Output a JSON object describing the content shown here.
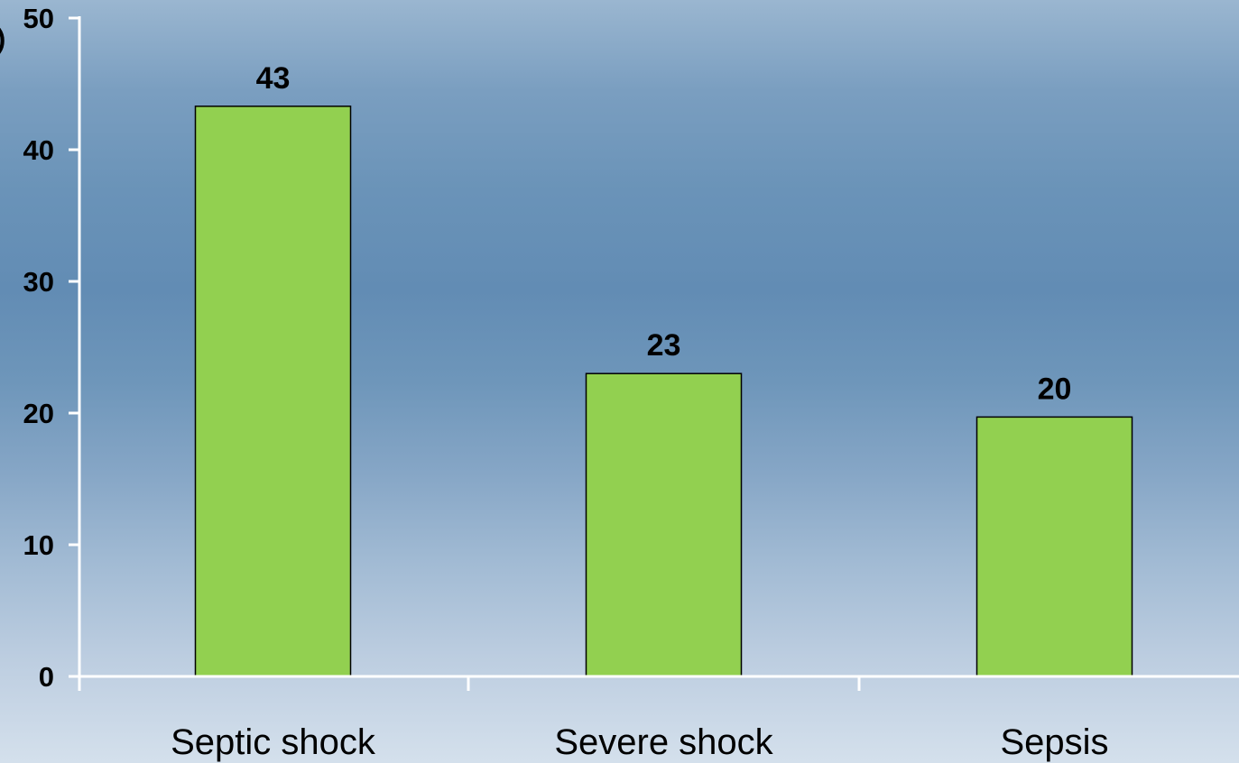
{
  "chart_data": {
    "type": "bar",
    "title": "",
    "xlabel": "",
    "ylabel": "",
    "categories": [
      "Septic shock",
      "Severe shock",
      "Sepsis"
    ],
    "values": [
      43.3,
      23,
      19.7
    ],
    "data_labels": [
      "43",
      "23",
      "20"
    ],
    "ylim": [
      0,
      50
    ],
    "yticks": [
      "0",
      "10",
      "20",
      "30",
      "40",
      "50"
    ],
    "ylabel_fragment": ")",
    "grid": false,
    "legend": "none",
    "colors": {
      "bar_fill": "#92d050",
      "bar_stroke": "#000000",
      "axis": "#ffffff",
      "text": "#000000"
    }
  }
}
